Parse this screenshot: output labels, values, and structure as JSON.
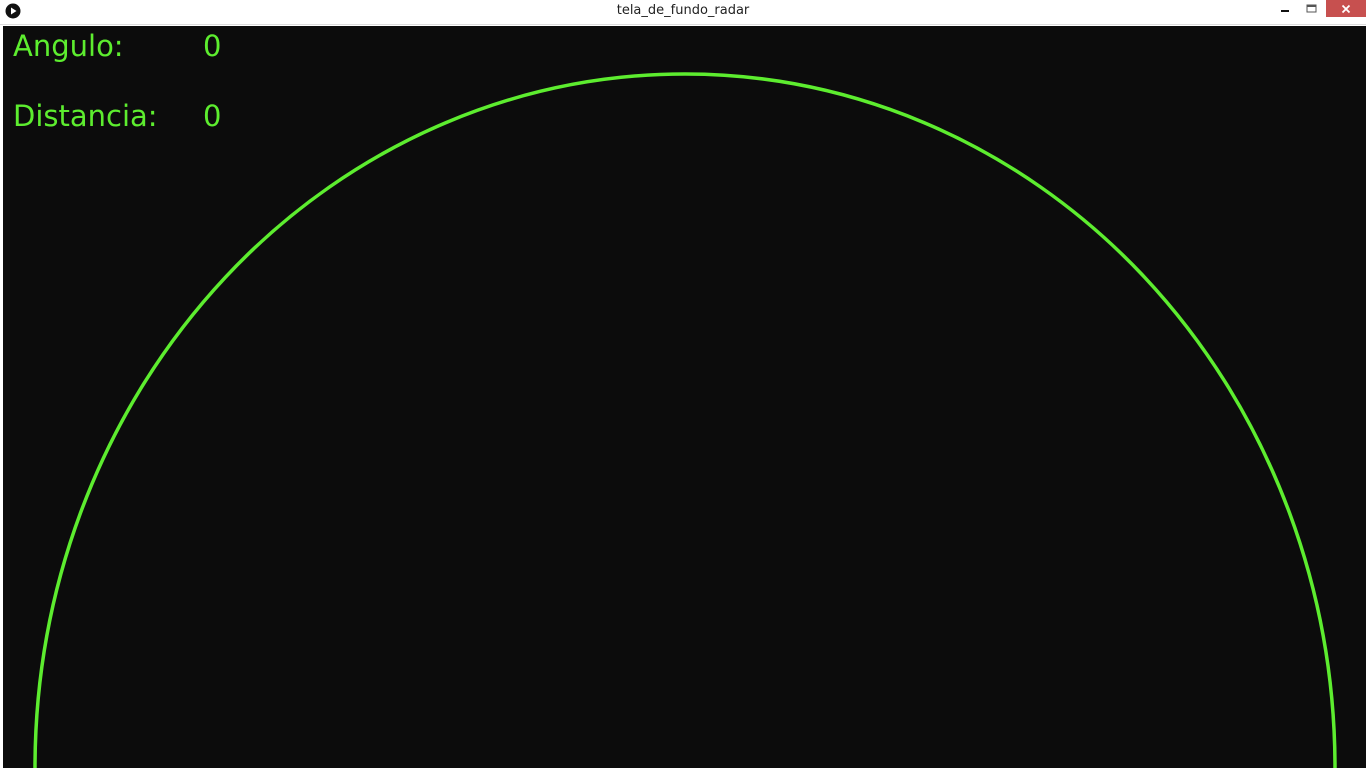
{
  "window": {
    "title": "tela_de_fundo_radar",
    "controls": {
      "minimize": "minimize-icon",
      "maximize": "maximize-icon",
      "close": "close-icon"
    }
  },
  "hud": {
    "angle_label": "Angulo:",
    "angle_value": "0",
    "distance_label": "Distancia:",
    "distance_value": "0"
  },
  "colors": {
    "background": "#0c0c0c",
    "radar": "#5ded2f",
    "close_button": "#c7504f"
  }
}
